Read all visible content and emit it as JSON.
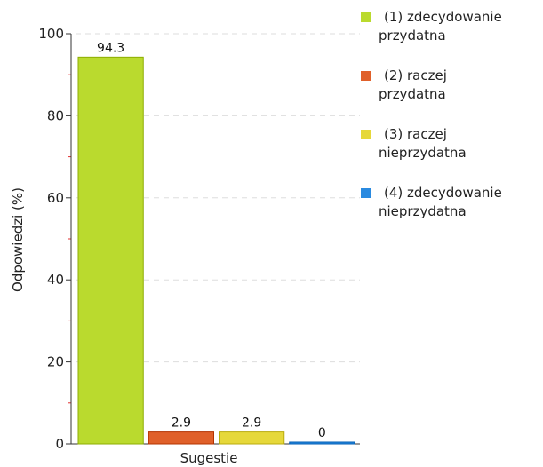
{
  "chart_data": {
    "type": "bar",
    "categories": [
      "(1) zdecydowanie przydatna",
      "(2) raczej przydatna",
      "(3) raczej nieprzydatna",
      "(4) zdecydowanie nieprzydatna"
    ],
    "values": [
      94.3,
      2.9,
      2.9,
      0
    ],
    "value_labels": [
      "94.3",
      "2.9",
      "2.9",
      "0"
    ],
    "colors": [
      "#bada2e",
      "#e0602a",
      "#e6d83a",
      "#2a8ae0"
    ],
    "xlabel": "Sugestie",
    "ylabel": "Odpowiedzi (%)",
    "ylim": [
      0,
      100
    ],
    "yticks": [
      0,
      20,
      40,
      60,
      80,
      100
    ],
    "grid": true,
    "legend": {
      "position": "right",
      "entries": [
        {
          "lines": [
            "(1) zdecydowanie",
            "przydatna"
          ],
          "color": "#bada2e"
        },
        {
          "lines": [
            "(2) raczej",
            "przydatna"
          ],
          "color": "#e0602a"
        },
        {
          "lines": [
            "(3) raczej",
            "nieprzydatna"
          ],
          "color": "#e6d83a"
        },
        {
          "lines": [
            "(4) zdecydowanie",
            "nieprzydatna"
          ],
          "color": "#2a8ae0"
        }
      ]
    }
  }
}
